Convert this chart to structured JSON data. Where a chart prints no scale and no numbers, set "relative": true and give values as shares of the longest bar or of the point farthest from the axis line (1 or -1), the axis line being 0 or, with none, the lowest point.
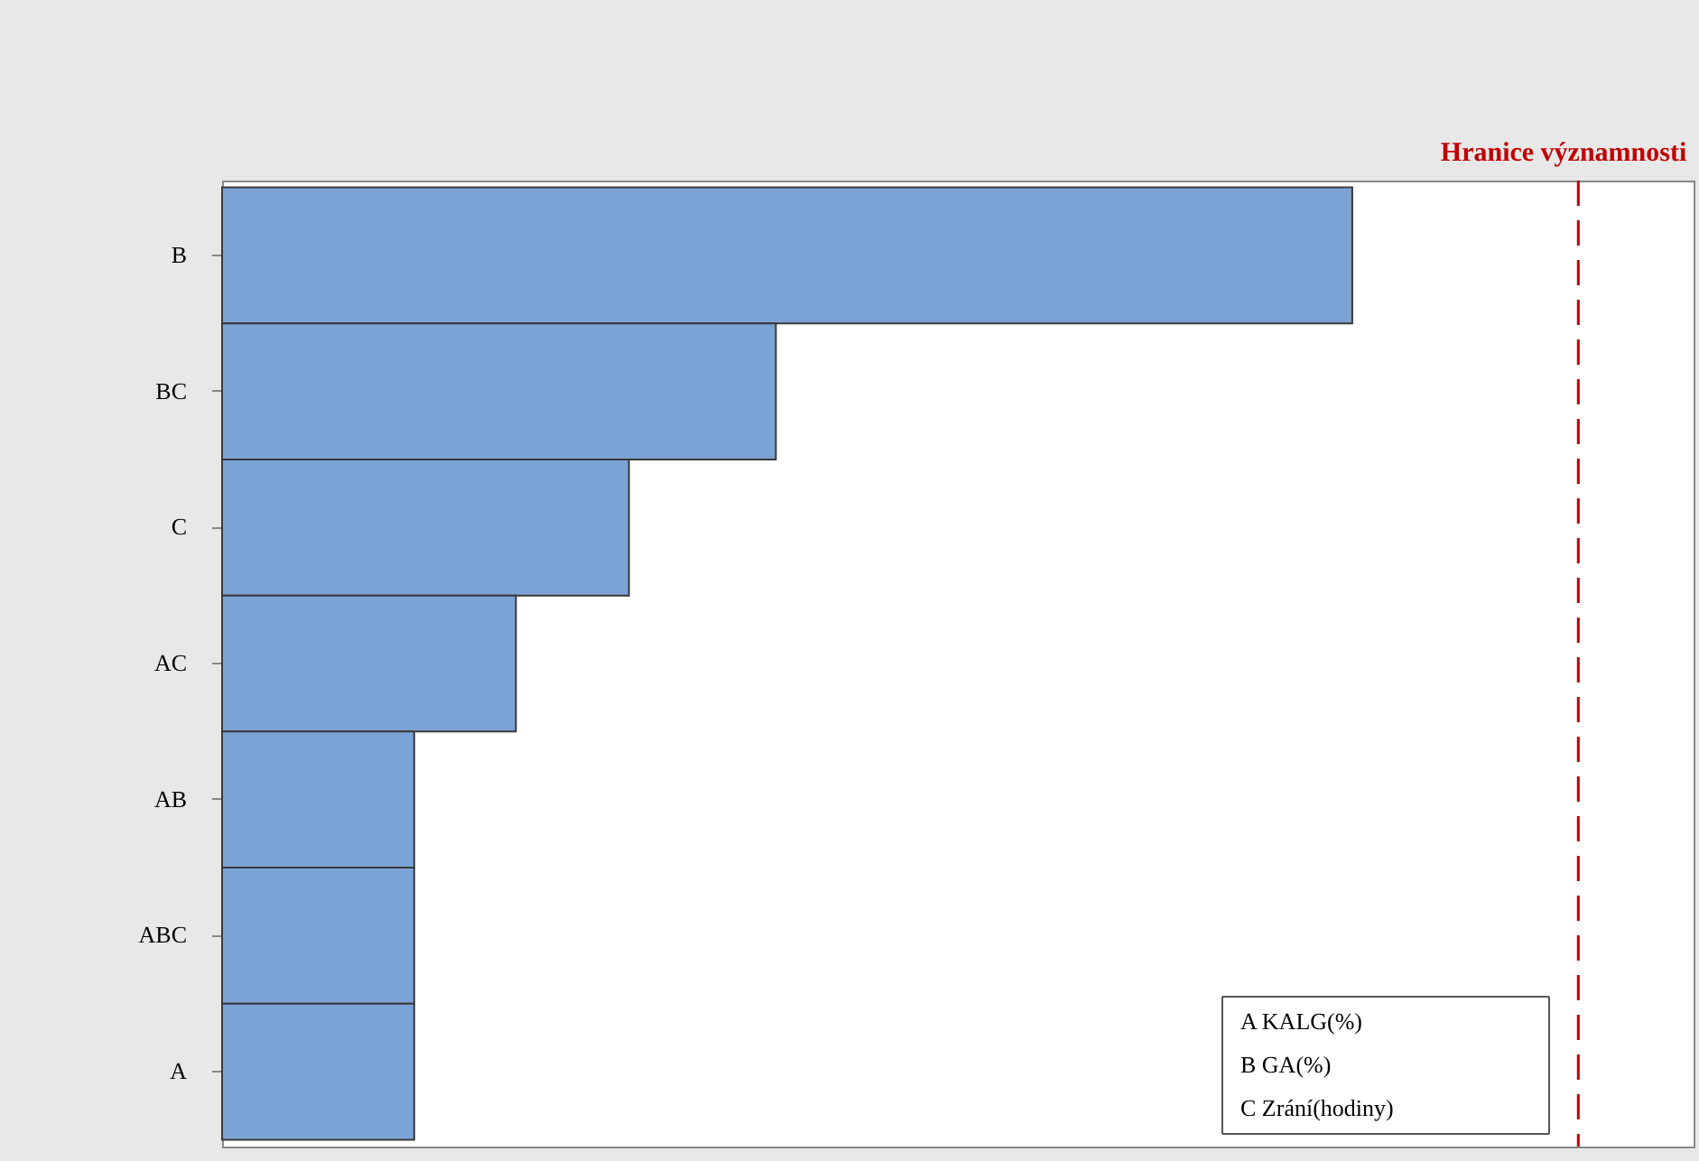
{
  "chart_data": {
    "type": "bar",
    "orientation": "horizontal",
    "relative": true,
    "categories": [
      "B",
      "BC",
      "C",
      "AC",
      "AB",
      "ABC",
      "A"
    ],
    "values": [
      1,
      0.49,
      0.36,
      0.26,
      0.17,
      0.17,
      0.17
    ],
    "color": "#7ba3d6",
    "ref_lines": [
      {
        "axis": "x",
        "value": 1.2,
        "label": "Hranice významnosti",
        "color": "#c00000",
        "line_style": "dashed"
      }
    ],
    "annotations": [
      "A   KALG(%)",
      "B   GA(%)",
      "C   Zrání(hodiny)"
    ],
    "marker": "none"
  }
}
